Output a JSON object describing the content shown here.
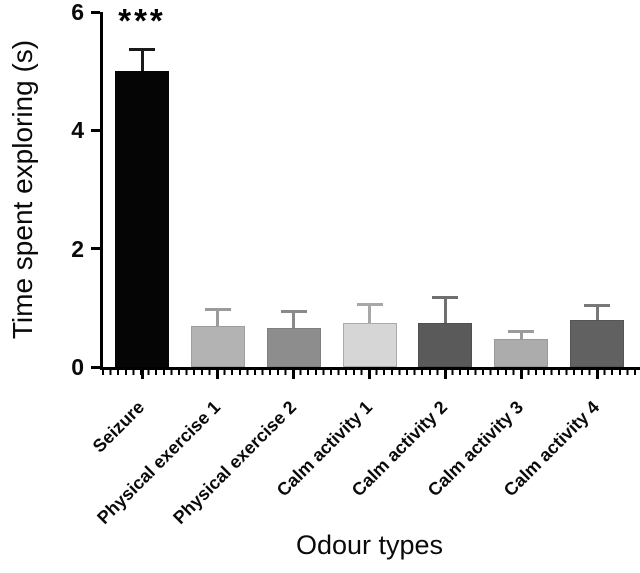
{
  "chart_data": {
    "type": "bar",
    "xlabel": "Odour types",
    "ylabel": "Time spent exploring (s)",
    "ylim": [
      0,
      6
    ],
    "yticks": [
      0,
      2,
      4,
      6
    ],
    "grid": false,
    "legend": "none",
    "categories": [
      "Seizure",
      "Physical exercise 1",
      "Physical exercise 2",
      "Calm activity 1",
      "Calm activity 2",
      "Calm activity 3",
      "Calm activity 4"
    ],
    "values": [
      5.0,
      0.7,
      0.66,
      0.74,
      0.74,
      0.47,
      0.79
    ],
    "errors": [
      0.4,
      0.29,
      0.31,
      0.34,
      0.46,
      0.16,
      0.28
    ],
    "error_style": "upper error bars with caps",
    "bar_colors": [
      "#050505",
      "#b3b3b3",
      "#8d8d8d",
      "#d6d6d6",
      "#5a5a5a",
      "#acacac",
      "#616161"
    ],
    "bar_edge_colors": [
      "#050505",
      "#9e9e9e",
      "#7f7f7f",
      "#ababab",
      "#4f4f4f",
      "#999999",
      "#555555"
    ],
    "error_bar_colors": [
      "#1a1a1a",
      "#9b9b9b",
      "#8a8a8a",
      "#a8a8a8",
      "#6f6f6f",
      "#9b9b9b",
      "#787878"
    ],
    "significance": [
      {
        "text": "***",
        "category": "Seizure",
        "bar_index": 0
      }
    ]
  }
}
